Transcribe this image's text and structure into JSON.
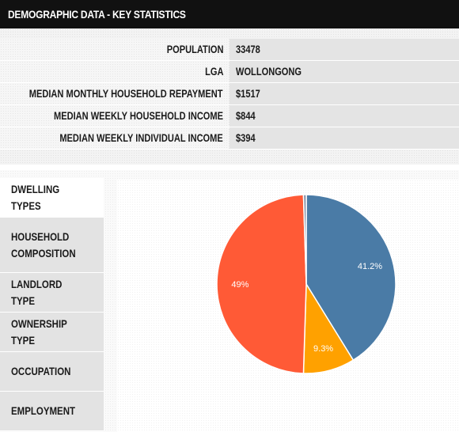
{
  "header": {
    "title": "DEMOGRAPHIC DATA - KEY STATISTICS"
  },
  "stats": [
    {
      "label": "POPULATION",
      "value": "33478"
    },
    {
      "label": "LGA",
      "value": "WOLLONGONG"
    },
    {
      "label": "MEDIAN MONTHLY HOUSEHOLD REPAYMENT",
      "value": "$1517"
    },
    {
      "label": "MEDIAN WEEKLY HOUSEHOLD INCOME",
      "value": "$844"
    },
    {
      "label": "MEDIAN WEEKLY INDIVIDUAL INCOME",
      "value": "$394"
    }
  ],
  "tabs": [
    {
      "label": "DWELLING TYPES",
      "active": true
    },
    {
      "label": "HOUSEHOLD\nCOMPOSITION",
      "active": false
    },
    {
      "label": "LANDLORD TYPE",
      "active": false
    },
    {
      "label": "OWNERSHIP TYPE",
      "active": false
    },
    {
      "label": "OCCUPATION",
      "active": false
    },
    {
      "label": "EMPLOYMENT",
      "active": false
    }
  ],
  "chart_data": {
    "type": "pie",
    "title": "",
    "slices": [
      {
        "value": 41.2,
        "label": "41.2%",
        "color": "#4a7ba6"
      },
      {
        "value": 9.3,
        "label": "9.3%",
        "color": "#ffa100"
      },
      {
        "value": 49,
        "label": "49%",
        "color": "#ff5a36"
      },
      {
        "value": 0.5,
        "label": "",
        "color": "#7f8ca3"
      }
    ],
    "start_position": "top, clockwise"
  }
}
